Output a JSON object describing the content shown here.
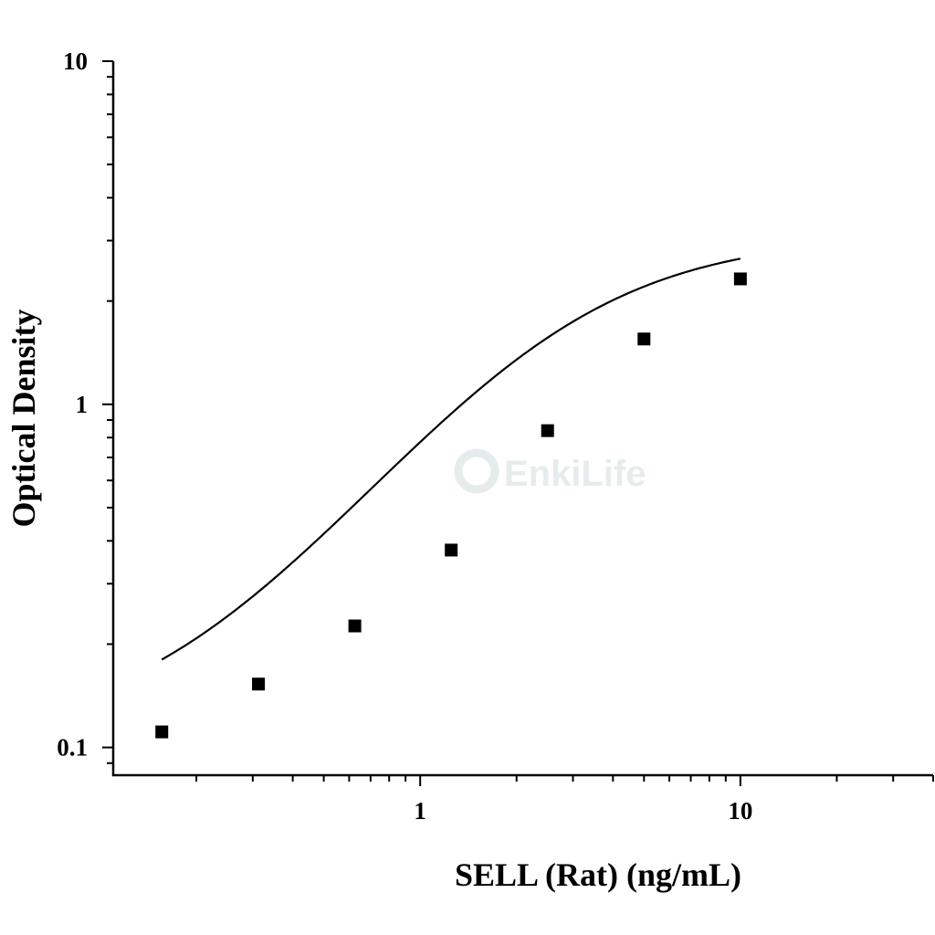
{
  "chart_data": {
    "type": "scatter",
    "xlabel": "SELL (Rat) (ng/mL)",
    "ylabel": "Optical Density",
    "x_scale": "log",
    "y_scale": "log",
    "xlim": [
      0.11,
      40
    ],
    "ylim": [
      0.083,
      10
    ],
    "x_ticks": [
      {
        "value": 1,
        "label": "1"
      },
      {
        "value": 10,
        "label": "10"
      }
    ],
    "y_ticks": [
      {
        "value": 0.1,
        "label": "0.1"
      },
      {
        "value": 1,
        "label": "1"
      },
      {
        "value": 10,
        "label": "10"
      }
    ],
    "grid": false,
    "marker": "square",
    "series": [
      {
        "points": [
          {
            "x": 0.156,
            "y": 0.111
          },
          {
            "x": 0.3125,
            "y": 0.153
          },
          {
            "x": 0.625,
            "y": 0.226
          },
          {
            "x": 1.25,
            "y": 0.376
          },
          {
            "x": 2.5,
            "y": 0.838
          },
          {
            "x": 5,
            "y": 1.55
          },
          {
            "x": 10,
            "y": 2.32
          }
        ]
      }
    ],
    "fit_curve": {
      "model": "4PL",
      "bottom": 0.105,
      "top": 3.1,
      "ec50": 2.6,
      "hill": 1.3,
      "x_range": [
        0.156,
        10
      ]
    }
  },
  "watermark": {
    "text": "EnkiLife",
    "color": "#e6ecec"
  }
}
